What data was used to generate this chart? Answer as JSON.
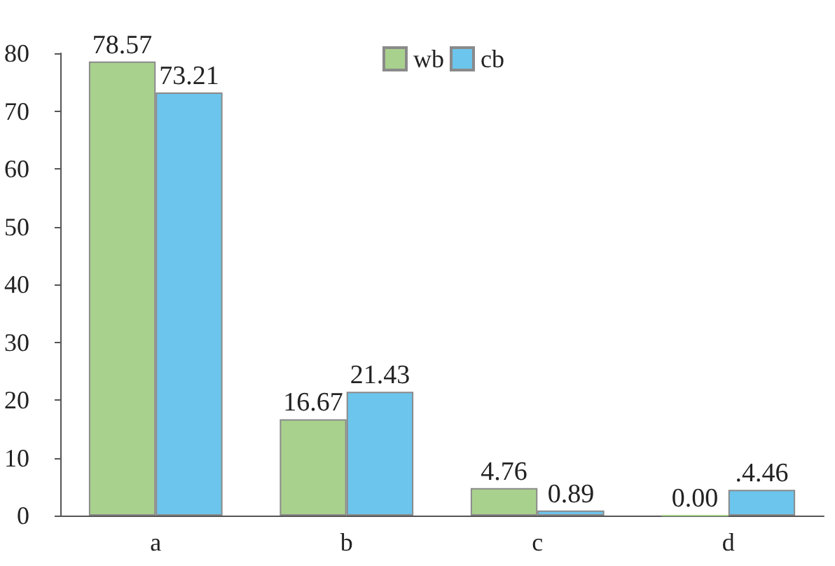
{
  "chart_data": {
    "type": "bar",
    "categories": [
      "a",
      "b",
      "c",
      "d"
    ],
    "series": [
      {
        "name": "wb",
        "color": "#a9d18e",
        "values": [
          78.57,
          16.67,
          4.76,
          0.0
        ],
        "value_labels": [
          "78.57",
          "16.67",
          "4.76",
          "0.00"
        ]
      },
      {
        "name": "cb",
        "color": "#6cc5ec",
        "values": [
          73.21,
          21.43,
          0.89,
          4.46
        ],
        "value_labels": [
          "73.21",
          "21.43",
          "0.89",
          ".4.46"
        ]
      }
    ],
    "ylim": [
      0,
      80
    ],
    "yticks": [
      0,
      10,
      20,
      30,
      40,
      50,
      60,
      70,
      80
    ],
    "grid": false,
    "legend": "top right"
  }
}
